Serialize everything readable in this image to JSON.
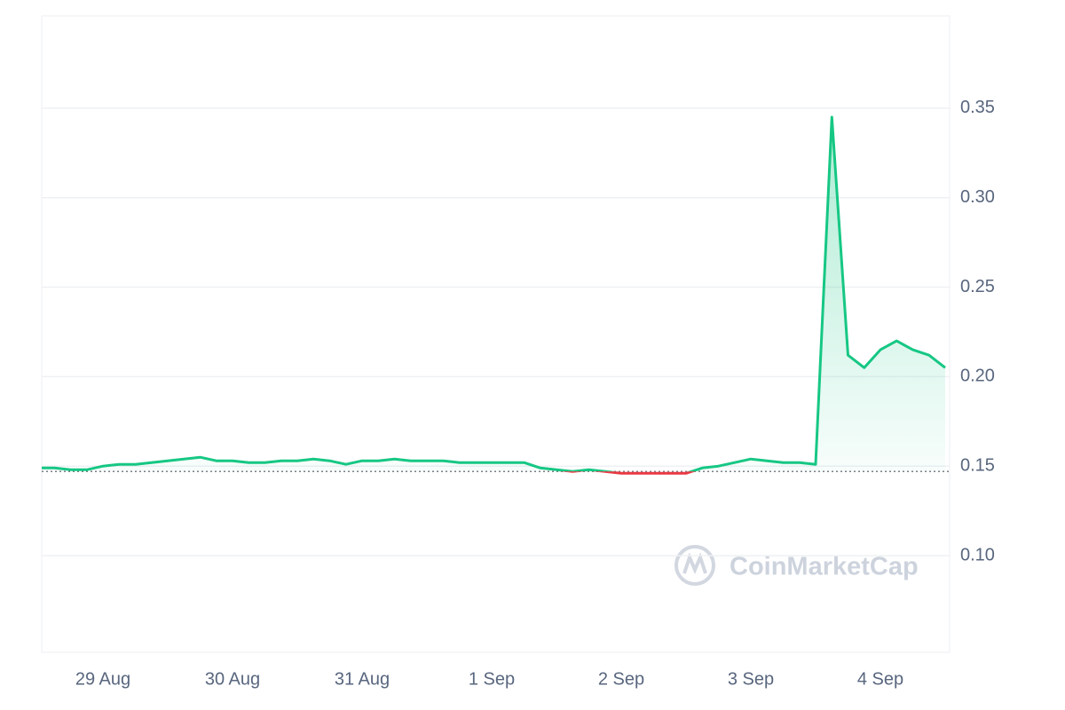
{
  "chart_data": {
    "type": "line",
    "watermark": "CoinMarketCap",
    "categories": [
      null,
      null,
      null,
      null,
      "29 Aug",
      null,
      null,
      null,
      null,
      null,
      null,
      null,
      "30 Aug",
      null,
      null,
      null,
      null,
      null,
      null,
      null,
      "31 Aug",
      null,
      null,
      null,
      null,
      null,
      null,
      null,
      "1 Sep",
      null,
      null,
      null,
      null,
      null,
      null,
      null,
      "2 Sep",
      null,
      null,
      null,
      null,
      null,
      null,
      null,
      "3 Sep",
      null,
      null,
      null,
      null,
      null,
      null,
      null,
      "4 Sep",
      null,
      null,
      null,
      null
    ],
    "values": [
      0.149,
      0.149,
      0.148,
      0.148,
      0.15,
      0.151,
      0.151,
      0.152,
      0.153,
      0.154,
      0.155,
      0.153,
      0.153,
      0.152,
      0.152,
      0.153,
      0.153,
      0.154,
      0.153,
      0.151,
      0.153,
      0.153,
      0.154,
      0.153,
      0.153,
      0.153,
      0.152,
      0.152,
      0.152,
      0.152,
      0.152,
      0.149,
      0.148,
      0.147,
      0.148,
      0.147,
      0.146,
      0.146,
      0.146,
      0.146,
      0.146,
      0.149,
      0.15,
      0.152,
      0.154,
      0.153,
      0.152,
      0.152,
      0.151,
      0.345,
      0.212,
      0.205,
      0.215,
      0.22,
      0.215,
      0.212,
      0.205
    ],
    "baseline": 0.147,
    "up_color": "#16c784",
    "down_color": "#ea3943",
    "ylim": [
      0.046,
      0.4015
    ],
    "yticks": [
      {
        "value": 0.1,
        "label": "0.10"
      },
      0.15,
      {
        "value": 0.2,
        "label": "0.20"
      },
      0.25,
      {
        "value": 0.3,
        "label": "0.30"
      },
      0.35
    ],
    "grid": true
  }
}
